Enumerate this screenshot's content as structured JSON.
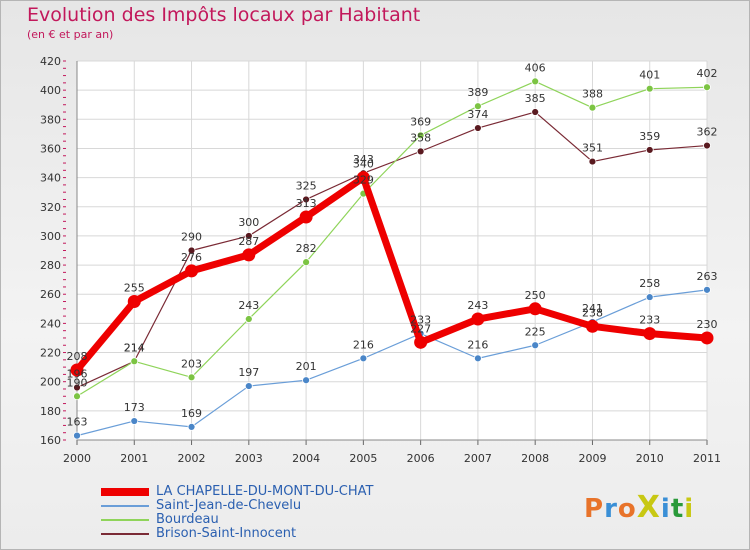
{
  "title": "Evolution des Impôts locaux par Habitant",
  "subtitle": "(en € et par an)",
  "brand": {
    "text": "ProXiti",
    "colors": [
      "#e8732a",
      "#3a8fd6",
      "#e8732a",
      "#c8c813",
      "#3a8fd6",
      "#2a9a3a",
      "#c8c813"
    ]
  },
  "chart_data": {
    "type": "line",
    "x": [
      2000,
      2001,
      2002,
      2003,
      2004,
      2005,
      2006,
      2007,
      2008,
      2009,
      2010,
      2011
    ],
    "ylim": [
      160,
      420
    ],
    "yticks": [
      160,
      180,
      200,
      220,
      240,
      260,
      280,
      300,
      320,
      340,
      360,
      380,
      400,
      420
    ],
    "grid": true,
    "legend_position": "bottom",
    "series": [
      {
        "name": "Brison-Saint-Innocent",
        "color": "#7a2a35",
        "marker": "#5a1a20",
        "width": 1.2,
        "radius": 3.5,
        "values": [
          196,
          214,
          290,
          300,
          325,
          343,
          358,
          374,
          385,
          351,
          359,
          362
        ],
        "labels": [
          "196",
          "214",
          "290",
          "300",
          "325",
          "343",
          "358",
          "374",
          "385",
          "351",
          "359",
          "362"
        ]
      },
      {
        "name": "Bourdeau",
        "color": "#8fd45a",
        "marker": "#7cc443",
        "width": 1.2,
        "radius": 3.5,
        "values": [
          190,
          214,
          203,
          243,
          282,
          329,
          369,
          389,
          406,
          388,
          401,
          402
        ],
        "labels": [
          "190",
          "214",
          "203",
          "243",
          "282",
          "329",
          "369",
          "389",
          "406",
          "388",
          "401",
          "402"
        ]
      },
      {
        "name": "Saint-Jean-de-Chevelu",
        "color": "#6a9ed8",
        "marker": "#4a86c8",
        "width": 1.2,
        "radius": 3.5,
        "values": [
          163,
          173,
          169,
          197,
          201,
          216,
          233,
          216,
          225,
          241,
          258,
          263
        ],
        "labels": [
          "163",
          "173",
          "169",
          "197",
          "201",
          "216",
          "233",
          "216",
          "225",
          "241",
          "258",
          "263"
        ]
      },
      {
        "name": "LA CHAPELLE-DU-MONT-DU-CHAT",
        "color": "#ee0000",
        "marker": "#ee0000",
        "width": 7,
        "radius": 6.5,
        "values": [
          208,
          255,
          276,
          287,
          313,
          340,
          227,
          243,
          250,
          238,
          233,
          230
        ],
        "labels": [
          "208",
          "255",
          "276",
          "287",
          "313",
          "340",
          "227",
          "243",
          "250",
          "238",
          "233",
          "230"
        ]
      }
    ],
    "legend": [
      {
        "name": "LA CHAPELLE-DU-MONT-DU-CHAT",
        "color": "#ee0000",
        "thickness": 8
      },
      {
        "name": "Saint-Jean-de-Chevelu",
        "color": "#6a9ed8",
        "thickness": 2
      },
      {
        "name": "Bourdeau",
        "color": "#8fd45a",
        "thickness": 2
      },
      {
        "name": "Brison-Saint-Innocent",
        "color": "#7a2a35",
        "thickness": 2
      }
    ]
  }
}
